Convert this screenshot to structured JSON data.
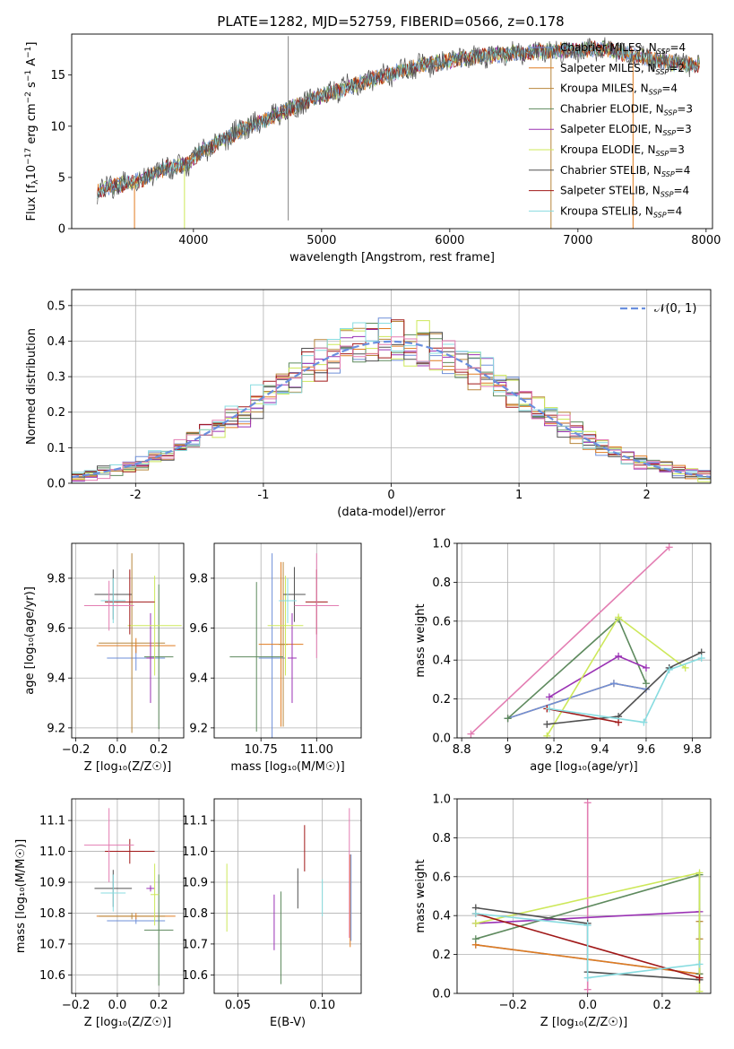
{
  "figure_title": "PLATE=1282, MJD=52759, FIBERID=0566, z=0.178",
  "colors": {
    "Chabrier MILES": "#6e8fd8",
    "Salpeter MILES": "#e07c20",
    "Kroupa MILES": "#b8863b",
    "Chabrier ELODIE": "#5e8a5e",
    "Salpeter ELODIE": "#9a32b4",
    "Kroupa ELODIE": "#cde85a",
    "Chabrier STELIB": "#505050",
    "Salpeter STELIB": "#a01818",
    "Kroupa STELIB": "#88dce0",
    "pink": "#e37db2",
    "gauss": "#6a8fdf"
  },
  "chart_data": [
    {
      "id": "spectrum",
      "type": "line",
      "title": "PLATE=1282, MJD=52759, FIBERID=0566, z=0.178",
      "xlabel": "wavelength [Angstrom, rest frame]",
      "ylabel_parts": [
        "Flux [f",
        "λ",
        "10",
        "−17",
        " erg cm",
        "−2",
        " s",
        "−1",
        " A",
        "−1",
        "]"
      ],
      "xlim": [
        3050,
        8050
      ],
      "ylim": [
        0,
        19
      ],
      "xticks": [
        4000,
        5000,
        6000,
        7000,
        8000
      ],
      "yticks": [
        0,
        5,
        10,
        15
      ],
      "legend": [
        {
          "name": "Chabrier MILES",
          "n": "4"
        },
        {
          "name": "Salpeter MILES",
          "n": "2"
        },
        {
          "name": "Kroupa MILES",
          "n": "4"
        },
        {
          "name": "Chabrier ELODIE",
          "n": "3"
        },
        {
          "name": "Salpeter ELODIE",
          "n": "3"
        },
        {
          "name": "Kroupa ELODIE",
          "n": "3"
        },
        {
          "name": "Chabrier STELIB",
          "n": "4"
        },
        {
          "name": "Salpeter STELIB",
          "n": "4"
        },
        {
          "name": "Kroupa STELIB",
          "n": "4"
        }
      ],
      "legend_sub": "SSP",
      "legend_placement": "upper-right",
      "continuum": [
        [
          3250,
          3.7
        ],
        [
          3400,
          4.2
        ],
        [
          3600,
          4.8
        ],
        [
          3800,
          6.0
        ],
        [
          3950,
          6.2
        ],
        [
          4050,
          7.5
        ],
        [
          4200,
          8.5
        ],
        [
          4400,
          9.8
        ],
        [
          4600,
          10.8
        ],
        [
          4800,
          12.0
        ],
        [
          5000,
          13.0
        ],
        [
          5200,
          13.8
        ],
        [
          5400,
          14.6
        ],
        [
          5600,
          15.3
        ],
        [
          5800,
          16.0
        ],
        [
          6000,
          16.4
        ],
        [
          6200,
          16.8
        ],
        [
          6400,
          17.0
        ],
        [
          6600,
          17.2
        ],
        [
          6800,
          17.4
        ],
        [
          7000,
          17.5
        ],
        [
          7200,
          17.6
        ],
        [
          7400,
          17.0
        ],
        [
          7600,
          16.5
        ],
        [
          7800,
          16.0
        ],
        [
          7950,
          16.0
        ]
      ],
      "spike_x": 4740,
      "spike_top": 18.8,
      "dropout_x": [
        3540,
        3930,
        6790,
        7430
      ]
    },
    {
      "id": "residuals",
      "type": "line",
      "xlabel": "(data-model)/error",
      "ylabel": "Normed distribution",
      "xlim": [
        -2.5,
        2.5
      ],
      "ylim": [
        0,
        0.545
      ],
      "xticks": [
        -2,
        -1,
        0,
        1,
        2
      ],
      "yticks": [
        0.0,
        0.1,
        0.2,
        0.3,
        0.4,
        0.5
      ],
      "grid": true,
      "gauss_label": "𝒩(0, 1)",
      "bin_width": 0.1,
      "bins_start": -2.5
    },
    {
      "id": "age-vs-Z",
      "type": "scatter",
      "xlabel": "Z [log₁₀(Z/Z☉)]",
      "ylabel": "age  [log₁₀(age/yr)]",
      "xlim": [
        -0.22,
        0.32
      ],
      "ylim": [
        9.16,
        9.94
      ],
      "xticks": [
        -0.2,
        0.0,
        0.2
      ],
      "xticklabels": [
        "−0.2",
        "0.0",
        "0.2"
      ],
      "yticks": [
        9.2,
        9.4,
        9.6,
        9.8
      ],
      "grid": true,
      "points": [
        {
          "s": "Chabrier MILES",
          "x": 0.09,
          "y": 9.48,
          "dx": 0.14,
          "dy": 0.05
        },
        {
          "s": "Salpeter MILES",
          "x": 0.09,
          "y": 9.53,
          "dx": 0.19,
          "dy": 0.03
        },
        {
          "s": "Kroupa MILES",
          "x": 0.07,
          "y": 9.54,
          "dx": 0.16,
          "dy": 0.36
        },
        {
          "s": "Chabrier ELODIE",
          "x": 0.2,
          "y": 9.485,
          "dx": 0.07,
          "dy": 0.29
        },
        {
          "s": "Salpeter ELODIE",
          "x": 0.16,
          "y": 9.48,
          "dx": 0.02,
          "dy": 0.18
        },
        {
          "s": "Kroupa ELODIE",
          "x": 0.18,
          "y": 9.61,
          "dx": 0.13,
          "dy": 0.2
        },
        {
          "s": "Chabrier STELIB",
          "x": -0.02,
          "y": 9.735,
          "dx": 0.09,
          "dy": 0.1
        },
        {
          "s": "Salpeter STELIB",
          "x": 0.06,
          "y": 9.705,
          "dx": 0.12,
          "dy": 0.13
        },
        {
          "s": "Kroupa STELIB",
          "x": -0.02,
          "y": 9.71,
          "dx": 0.06,
          "dy": 0.09
        },
        {
          "s": "pink",
          "x": -0.04,
          "y": 9.69,
          "dx": 0.12,
          "dy": 0.1
        }
      ]
    },
    {
      "id": "age-vs-mass",
      "type": "scatter",
      "xlabel": "mass [log₁₀(M/M☉)]",
      "xlim": [
        10.54,
        11.2
      ],
      "ylim": [
        9.16,
        9.94
      ],
      "xticks": [
        10.75,
        11.0
      ],
      "xticklabels": [
        "10.75",
        "11.00"
      ],
      "yticks": [
        9.2,
        9.4,
        9.6,
        9.8
      ],
      "grid": true,
      "points": [
        {
          "s": "Chabrier MILES",
          "x": 10.8,
          "y": 9.48,
          "dx": 0.06,
          "dy": 0.42
        },
        {
          "s": "Salpeter MILES",
          "x": 10.84,
          "y": 9.535,
          "dx": 0.1,
          "dy": 0.33
        },
        {
          "s": "Kroupa MILES",
          "x": 10.85,
          "y": 9.535,
          "dx": 0.02,
          "dy": 0.33
        },
        {
          "s": "Chabrier ELODIE",
          "x": 10.73,
          "y": 9.485,
          "dx": 0.12,
          "dy": 0.3
        },
        {
          "s": "Salpeter ELODIE",
          "x": 10.89,
          "y": 9.48,
          "dx": 0.02,
          "dy": 0.18
        },
        {
          "s": "Kroupa ELODIE",
          "x": 10.86,
          "y": 9.61,
          "dx": 0.08,
          "dy": 0.2
        },
        {
          "s": "Chabrier STELIB",
          "x": 10.9,
          "y": 9.735,
          "dx": 0.05,
          "dy": 0.11
        },
        {
          "s": "Salpeter STELIB",
          "x": 11.0,
          "y": 9.705,
          "dx": 0.05,
          "dy": 0.13
        },
        {
          "s": "Kroupa STELIB",
          "x": 10.87,
          "y": 9.71,
          "dx": 0.04,
          "dy": 0.09
        },
        {
          "s": "pink",
          "x": 11.0,
          "y": 9.69,
          "dx": 0.1,
          "dy": 0.21
        }
      ]
    },
    {
      "id": "weight-vs-age",
      "type": "line",
      "xlabel": "age  [log₁₀(age/yr)]",
      "ylabel": "mass weight",
      "xlim": [
        8.78,
        9.88
      ],
      "ylim": [
        0,
        1
      ],
      "xticks": [
        8.8,
        9.0,
        9.2,
        9.4,
        9.6,
        9.8
      ],
      "yticks": [
        0.0,
        0.2,
        0.4,
        0.6,
        0.8,
        1.0
      ],
      "grid": true,
      "series": [
        {
          "s": "pink",
          "x": [
            8.84,
            9.7
          ],
          "y": [
            0.02,
            0.98
          ]
        },
        {
          "s": "Salpeter MILES",
          "x": [
            9.0,
            9.46,
            9.6
          ],
          "y": [
            0.1,
            0.28,
            0.25
          ]
        },
        {
          "s": "Chabrier MILES",
          "x": [
            9.0,
            9.46,
            9.6
          ],
          "y": [
            0.1,
            0.28,
            0.25
          ]
        },
        {
          "s": "Chabrier ELODIE",
          "x": [
            9.0,
            9.48,
            9.6
          ],
          "y": [
            0.1,
            0.61,
            0.28
          ]
        },
        {
          "s": "Salpeter ELODIE",
          "x": [
            9.18,
            9.48,
            9.6
          ],
          "y": [
            0.21,
            0.42,
            0.36
          ]
        },
        {
          "s": "Kroupa ELODIE",
          "x": [
            9.17,
            9.48,
            9.77
          ],
          "y": [
            0.01,
            0.62,
            0.36
          ]
        },
        {
          "s": "Chabrier STELIB",
          "x": [
            9.17,
            9.48,
            9.7,
            9.84
          ],
          "y": [
            0.07,
            0.11,
            0.36,
            0.44
          ]
        },
        {
          "s": "Salpeter STELIB",
          "x": [
            9.17,
            9.48
          ],
          "y": [
            0.15,
            0.08
          ]
        },
        {
          "s": "Kroupa STELIB",
          "x": [
            9.18,
            9.59,
            9.7,
            9.84
          ],
          "y": [
            0.15,
            0.08,
            0.35,
            0.41
          ]
        }
      ]
    },
    {
      "id": "mass-vs-Z",
      "type": "scatter",
      "xlabel": "Z [log₁₀(Z/Z☉)]",
      "ylabel": "mass [log₁₀(M/M☉)]",
      "xlim": [
        -0.22,
        0.32
      ],
      "ylim": [
        10.54,
        11.17
      ],
      "xticks": [
        -0.2,
        0.0,
        0.2
      ],
      "xticklabels": [
        "−0.2",
        "0.0",
        "0.2"
      ],
      "yticks": [
        10.6,
        10.7,
        10.8,
        10.9,
        11.0,
        11.1
      ],
      "grid": true,
      "points": [
        {
          "s": "Chabrier MILES",
          "x": 0.09,
          "y": 10.775,
          "dx": 0.14,
          "dy": 0.01
        },
        {
          "s": "Salpeter MILES",
          "x": 0.09,
          "y": 10.79,
          "dx": 0.19,
          "dy": 0.01
        },
        {
          "s": "Kroupa MILES",
          "x": 0.07,
          "y": 10.79,
          "dx": 0.16,
          "dy": 0.01
        },
        {
          "s": "Chabrier ELODIE",
          "x": 0.2,
          "y": 10.745,
          "dx": 0.07,
          "dy": 0.18
        },
        {
          "s": "Salpeter ELODIE",
          "x": 0.16,
          "y": 10.88,
          "dx": 0.02,
          "dy": 0.01
        },
        {
          "s": "Kroupa ELODIE",
          "x": 0.18,
          "y": 10.86,
          "dx": 0.02,
          "dy": 0.1
        },
        {
          "s": "Chabrier STELIB",
          "x": -0.02,
          "y": 10.88,
          "dx": 0.09,
          "dy": 0.06
        },
        {
          "s": "Salpeter STELIB",
          "x": 0.06,
          "y": 11.0,
          "dx": 0.12,
          "dy": 0.04
        },
        {
          "s": "Kroupa STELIB",
          "x": -0.02,
          "y": 10.865,
          "dx": 0.06,
          "dy": 0.06
        },
        {
          "s": "pink",
          "x": -0.04,
          "y": 11.02,
          "dx": 0.12,
          "dy": 0.12
        }
      ]
    },
    {
      "id": "mass-vs-EBV",
      "type": "scatter",
      "xlabel": "E(B-V)",
      "xlim": [
        0.036,
        0.123
      ],
      "ylim": [
        10.54,
        11.17
      ],
      "xticks": [
        0.05,
        0.1
      ],
      "xticklabels": [
        "0.05",
        "0.10"
      ],
      "yticks": [
        10.6,
        10.7,
        10.8,
        10.9,
        11.0,
        11.1
      ],
      "grid": true,
      "points": [
        {
          "s": "Kroupa ELODIE",
          "x": 0.0435,
          "y": 10.85,
          "dx": 0,
          "dy": 0.11
        },
        {
          "s": "Salpeter ELODIE",
          "x": 0.0715,
          "y": 10.77,
          "dx": 0,
          "dy": 0.09
        },
        {
          "s": "Chabrier ELODIE",
          "x": 0.0755,
          "y": 10.72,
          "dx": 0,
          "dy": 0.15
        },
        {
          "s": "Chabrier STELIB",
          "x": 0.0855,
          "y": 10.88,
          "dx": 0,
          "dy": 0.065
        },
        {
          "s": "Salpeter STELIB",
          "x": 0.0895,
          "y": 11.01,
          "dx": 0,
          "dy": 0.075
        },
        {
          "s": "Kroupa STELIB",
          "x": 0.1,
          "y": 10.85,
          "dx": 0,
          "dy": 0.06
        },
        {
          "s": "Salpeter MILES",
          "x": 0.1165,
          "y": 10.84,
          "dx": 0,
          "dy": 0.15
        },
        {
          "s": "Chabrier MILES",
          "x": 0.117,
          "y": 10.85,
          "dx": 0,
          "dy": 0.14
        },
        {
          "s": "pink",
          "x": 0.116,
          "y": 10.93,
          "dx": 0,
          "dy": 0.21
        }
      ]
    },
    {
      "id": "weight-vs-Z",
      "type": "line",
      "xlabel": "Z [log₁₀(Z/Z☉)]",
      "ylabel": "mass weight",
      "xlim": [
        -0.35,
        0.33
      ],
      "ylim": [
        0,
        1
      ],
      "xticks": [
        -0.2,
        0.0,
        0.2
      ],
      "xticklabels": [
        "−0.2",
        "0.0",
        "0.2"
      ],
      "yticks": [
        0.0,
        0.2,
        0.4,
        0.6,
        0.8,
        1.0
      ],
      "grid": true,
      "series": [
        {
          "s": "pink",
          "x": [
            0.0,
            0.0
          ],
          "y": [
            0.02,
            0.98
          ]
        },
        {
          "s": "Chabrier MILES",
          "x": [
            -0.3,
            0.3
          ],
          "y": [
            0.25,
            0.1
          ]
        },
        {
          "s": "Salpeter MILES",
          "x": [
            -0.3,
            0.3
          ],
          "y": [
            0.25,
            0.1
          ]
        },
        {
          "s": "Kroupa MILES",
          "x": [
            0.3,
            0.3,
            0.3
          ],
          "y": [
            0.37,
            0.28,
            0.1
          ]
        },
        {
          "s": "Chabrier ELODIE",
          "x": [
            -0.3,
            0.3,
            0.3
          ],
          "y": [
            0.28,
            0.61,
            0.1
          ]
        },
        {
          "s": "Salpeter ELODIE",
          "x": [
            -0.3,
            0.3
          ],
          "y": [
            0.36,
            0.42
          ]
        },
        {
          "s": "Kroupa ELODIE",
          "x": [
            -0.3,
            0.3,
            0.3
          ],
          "y": [
            0.36,
            0.62,
            0.01
          ]
        },
        {
          "s": "Chabrier STELIB",
          "x": [
            -0.3,
            0.0,
            0.0,
            0.3
          ],
          "y": [
            0.44,
            0.36,
            0.11,
            0.07
          ]
        },
        {
          "s": "Salpeter STELIB",
          "x": [
            -0.3,
            0.3
          ],
          "y": [
            0.41,
            0.08
          ]
        },
        {
          "s": "Kroupa STELIB",
          "x": [
            -0.3,
            0.0,
            0.0,
            0.3
          ],
          "y": [
            0.41,
            0.35,
            0.08,
            0.15
          ]
        }
      ]
    }
  ]
}
